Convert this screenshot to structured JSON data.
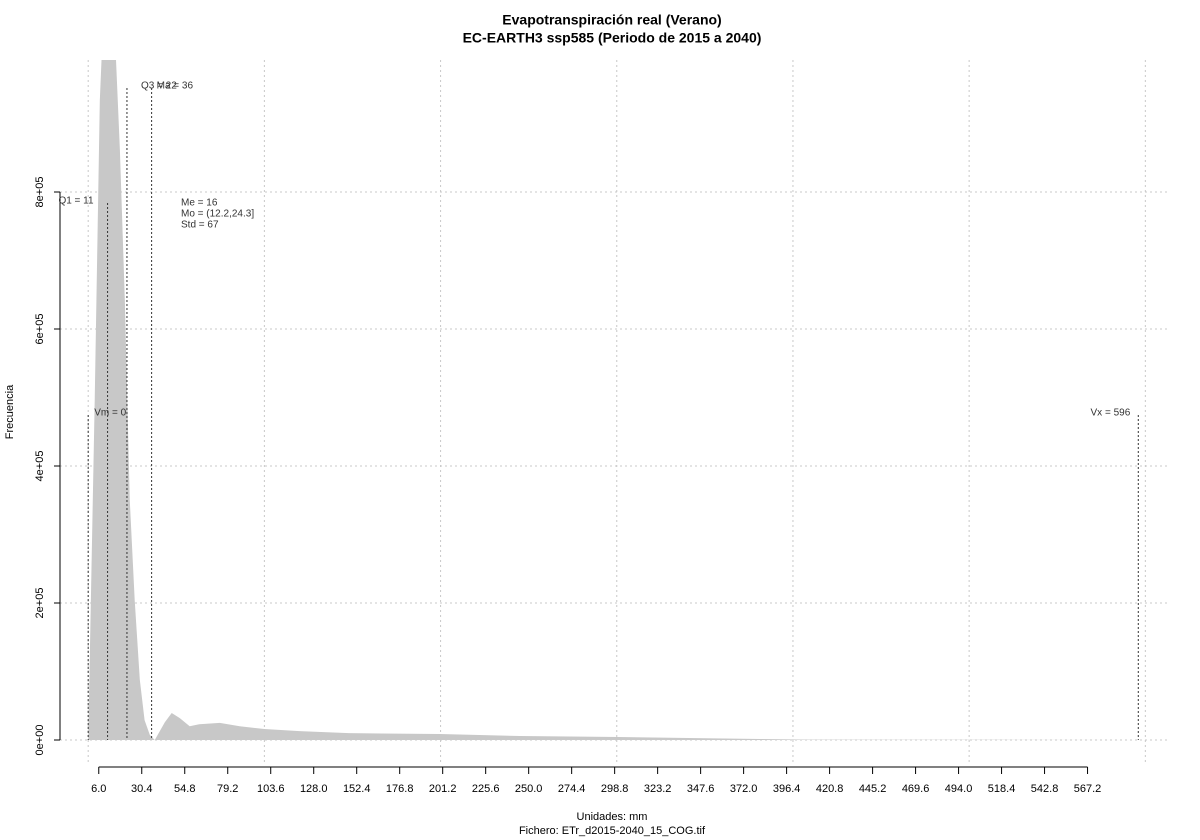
{
  "chart_data": {
    "type": "area",
    "title": "Evapotranspiración real (Verano)",
    "subtitle": "EC-EARTH3 ssp585 (Periodo de 2015 a 2040)",
    "x_label": "Unidades: mm",
    "caption": "Fichero: ETr_d2015-2040_15_COG.tif",
    "y_label": "Frecuencia",
    "color": "#c8c8c8",
    "x": [
      0,
      3.7,
      6.6,
      9,
      12.2,
      15,
      18,
      20.8,
      23.6,
      26.4,
      29.3,
      32,
      35,
      37.8,
      43.5,
      47.4,
      52,
      57.6,
      63,
      74.7,
      86,
      100,
      120,
      148,
      199.5,
      245,
      301,
      381,
      409,
      517,
      590
    ],
    "values": [
      0,
      496000,
      934000,
      1080000,
      1100000,
      1040000,
      861000,
      642000,
      350000,
      204000,
      88000,
      29000,
      7300,
      0,
      26000,
      39400,
      32000,
      20000,
      23000,
      25000,
      20000,
      16000,
      13000,
      10000,
      8700,
      5800,
      4400,
      1500,
      500,
      300,
      0
    ],
    "xlim": [
      -16,
      614
    ],
    "ylim": [
      -36500,
      992700
    ],
    "xticks": [
      {
        "value": 6,
        "label": "6.0"
      },
      30.4,
      54.8,
      79.2,
      103.6,
      {
        "value": 128,
        "label": "128.0"
      },
      152.4,
      176.8,
      201.2,
      225.6,
      {
        "value": 250,
        "label": "250.0"
      },
      274.4,
      298.8,
      323.2,
      347.6,
      {
        "value": 372,
        "label": "372.0"
      },
      396.4,
      420.8,
      445.2,
      469.6,
      {
        "value": 494,
        "label": "494.0"
      },
      518.4,
      542.8,
      567.2
    ],
    "yticks": [
      {
        "value": 0,
        "label": "0e+00"
      },
      {
        "value": 200000,
        "label": "2e+05"
      },
      {
        "value": 400000,
        "label": "4e+05"
      },
      {
        "value": 600000,
        "label": "6e+05"
      },
      {
        "value": 800000,
        "label": "8e+05"
      }
    ],
    "xgrid": [
      0,
      100,
      200,
      300,
      400,
      500,
      600
    ],
    "grid": true,
    "markers": [
      {
        "label": "Vm = 0",
        "value": 0
      },
      {
        "label": "Q1 = 11",
        "value": 11
      },
      {
        "label": "Q3 = 22",
        "value": 22
      },
      {
        "label": "Ma = 36",
        "value": 36
      },
      {
        "label": "Vx = 596",
        "value": 596
      }
    ],
    "stats": [
      "Me = 16",
      "Mo = (12.2,24.3]",
      "Std = 67"
    ]
  }
}
